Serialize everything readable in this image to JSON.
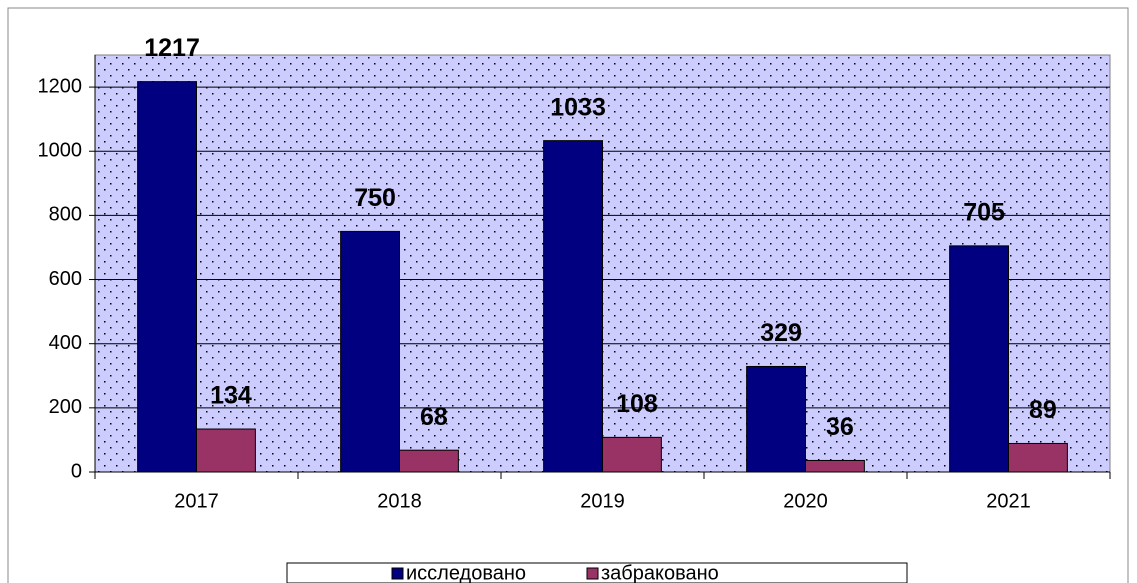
{
  "chart_data": {
    "type": "bar",
    "categories": [
      "2017",
      "2018",
      "2019",
      "2020",
      "2021"
    ],
    "series": [
      {
        "name": "исследовано",
        "color": "#000080",
        "values": [
          1217,
          750,
          1033,
          329,
          705
        ]
      },
      {
        "name": "забраковано",
        "color": "#993366",
        "values": [
          134,
          68,
          108,
          36,
          89
        ]
      }
    ],
    "ylim": [
      0,
      1300
    ],
    "yticks": [
      0,
      200,
      400,
      600,
      800,
      1000,
      1200
    ],
    "grid": true,
    "plot_background": "#ccccff",
    "legend": "bottom"
  }
}
